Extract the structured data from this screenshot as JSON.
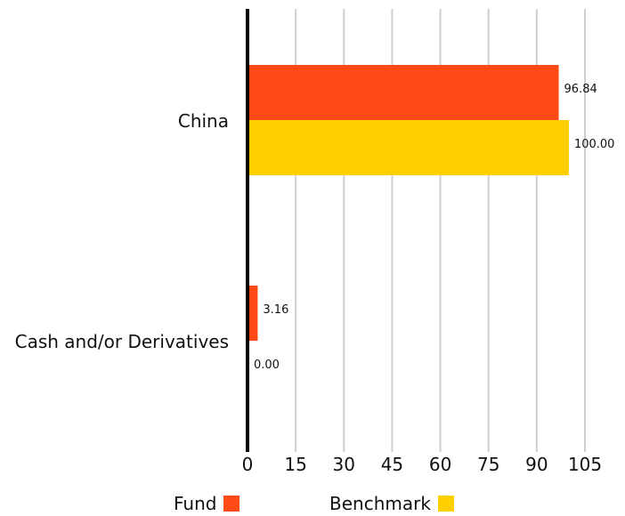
{
  "chart_data": {
    "type": "bar",
    "orientation": "horizontal",
    "categories": [
      "China",
      "Cash and/or Derivatives"
    ],
    "series": [
      {
        "name": "Fund",
        "values": [
          96.84,
          3.16
        ],
        "labels": [
          "96.84",
          "3.16"
        ],
        "color": "#FF4A15"
      },
      {
        "name": "Benchmark",
        "values": [
          100.0,
          0.0
        ],
        "labels": [
          "100.00",
          "0.00"
        ],
        "color": "#FFD000"
      }
    ],
    "x_ticks": [
      "0",
      "15",
      "30",
      "45",
      "60",
      "75",
      "90",
      "105"
    ],
    "xlim": [
      0,
      105
    ],
    "grid": true,
    "legend_position": "bottom"
  }
}
